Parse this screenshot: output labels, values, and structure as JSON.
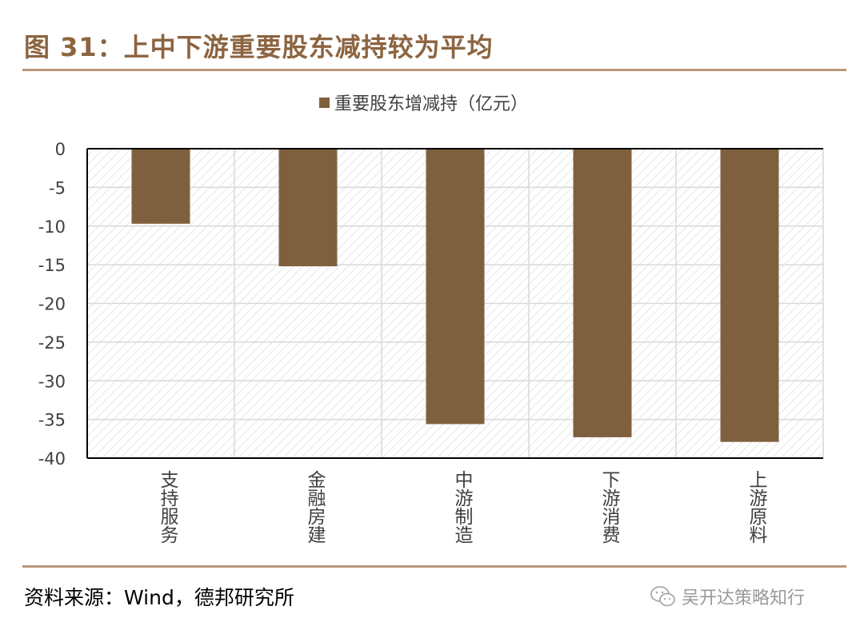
{
  "figure": {
    "title": "图 31：上中下游重要股东减持较为平均",
    "source": "资料来源：Wind，德邦研究所",
    "watermark": "吴开达策略知行"
  },
  "colors": {
    "bar": "#7F603E",
    "title": "#8C6440",
    "rule": "#B9977A",
    "grid": "#D9D9D9",
    "hatch": "#E6E6E6"
  },
  "chart_data": {
    "type": "bar",
    "categories": [
      "支持服务",
      "金融房建",
      "中游制造",
      "下游消费",
      "上游原料"
    ],
    "series": [
      {
        "name": "重要股东增减持（亿元）",
        "values": [
          -9.7,
          -15.2,
          -35.6,
          -37.3,
          -37.9
        ]
      }
    ],
    "ylim": [
      -40,
      0
    ],
    "yticks": [
      "0",
      "-5",
      "-10",
      "-15",
      "-20",
      "-25",
      "-30",
      "-35",
      "-40"
    ],
    "grid": true,
    "legend_position": "top-center",
    "x_label_orientation": "vertical"
  }
}
